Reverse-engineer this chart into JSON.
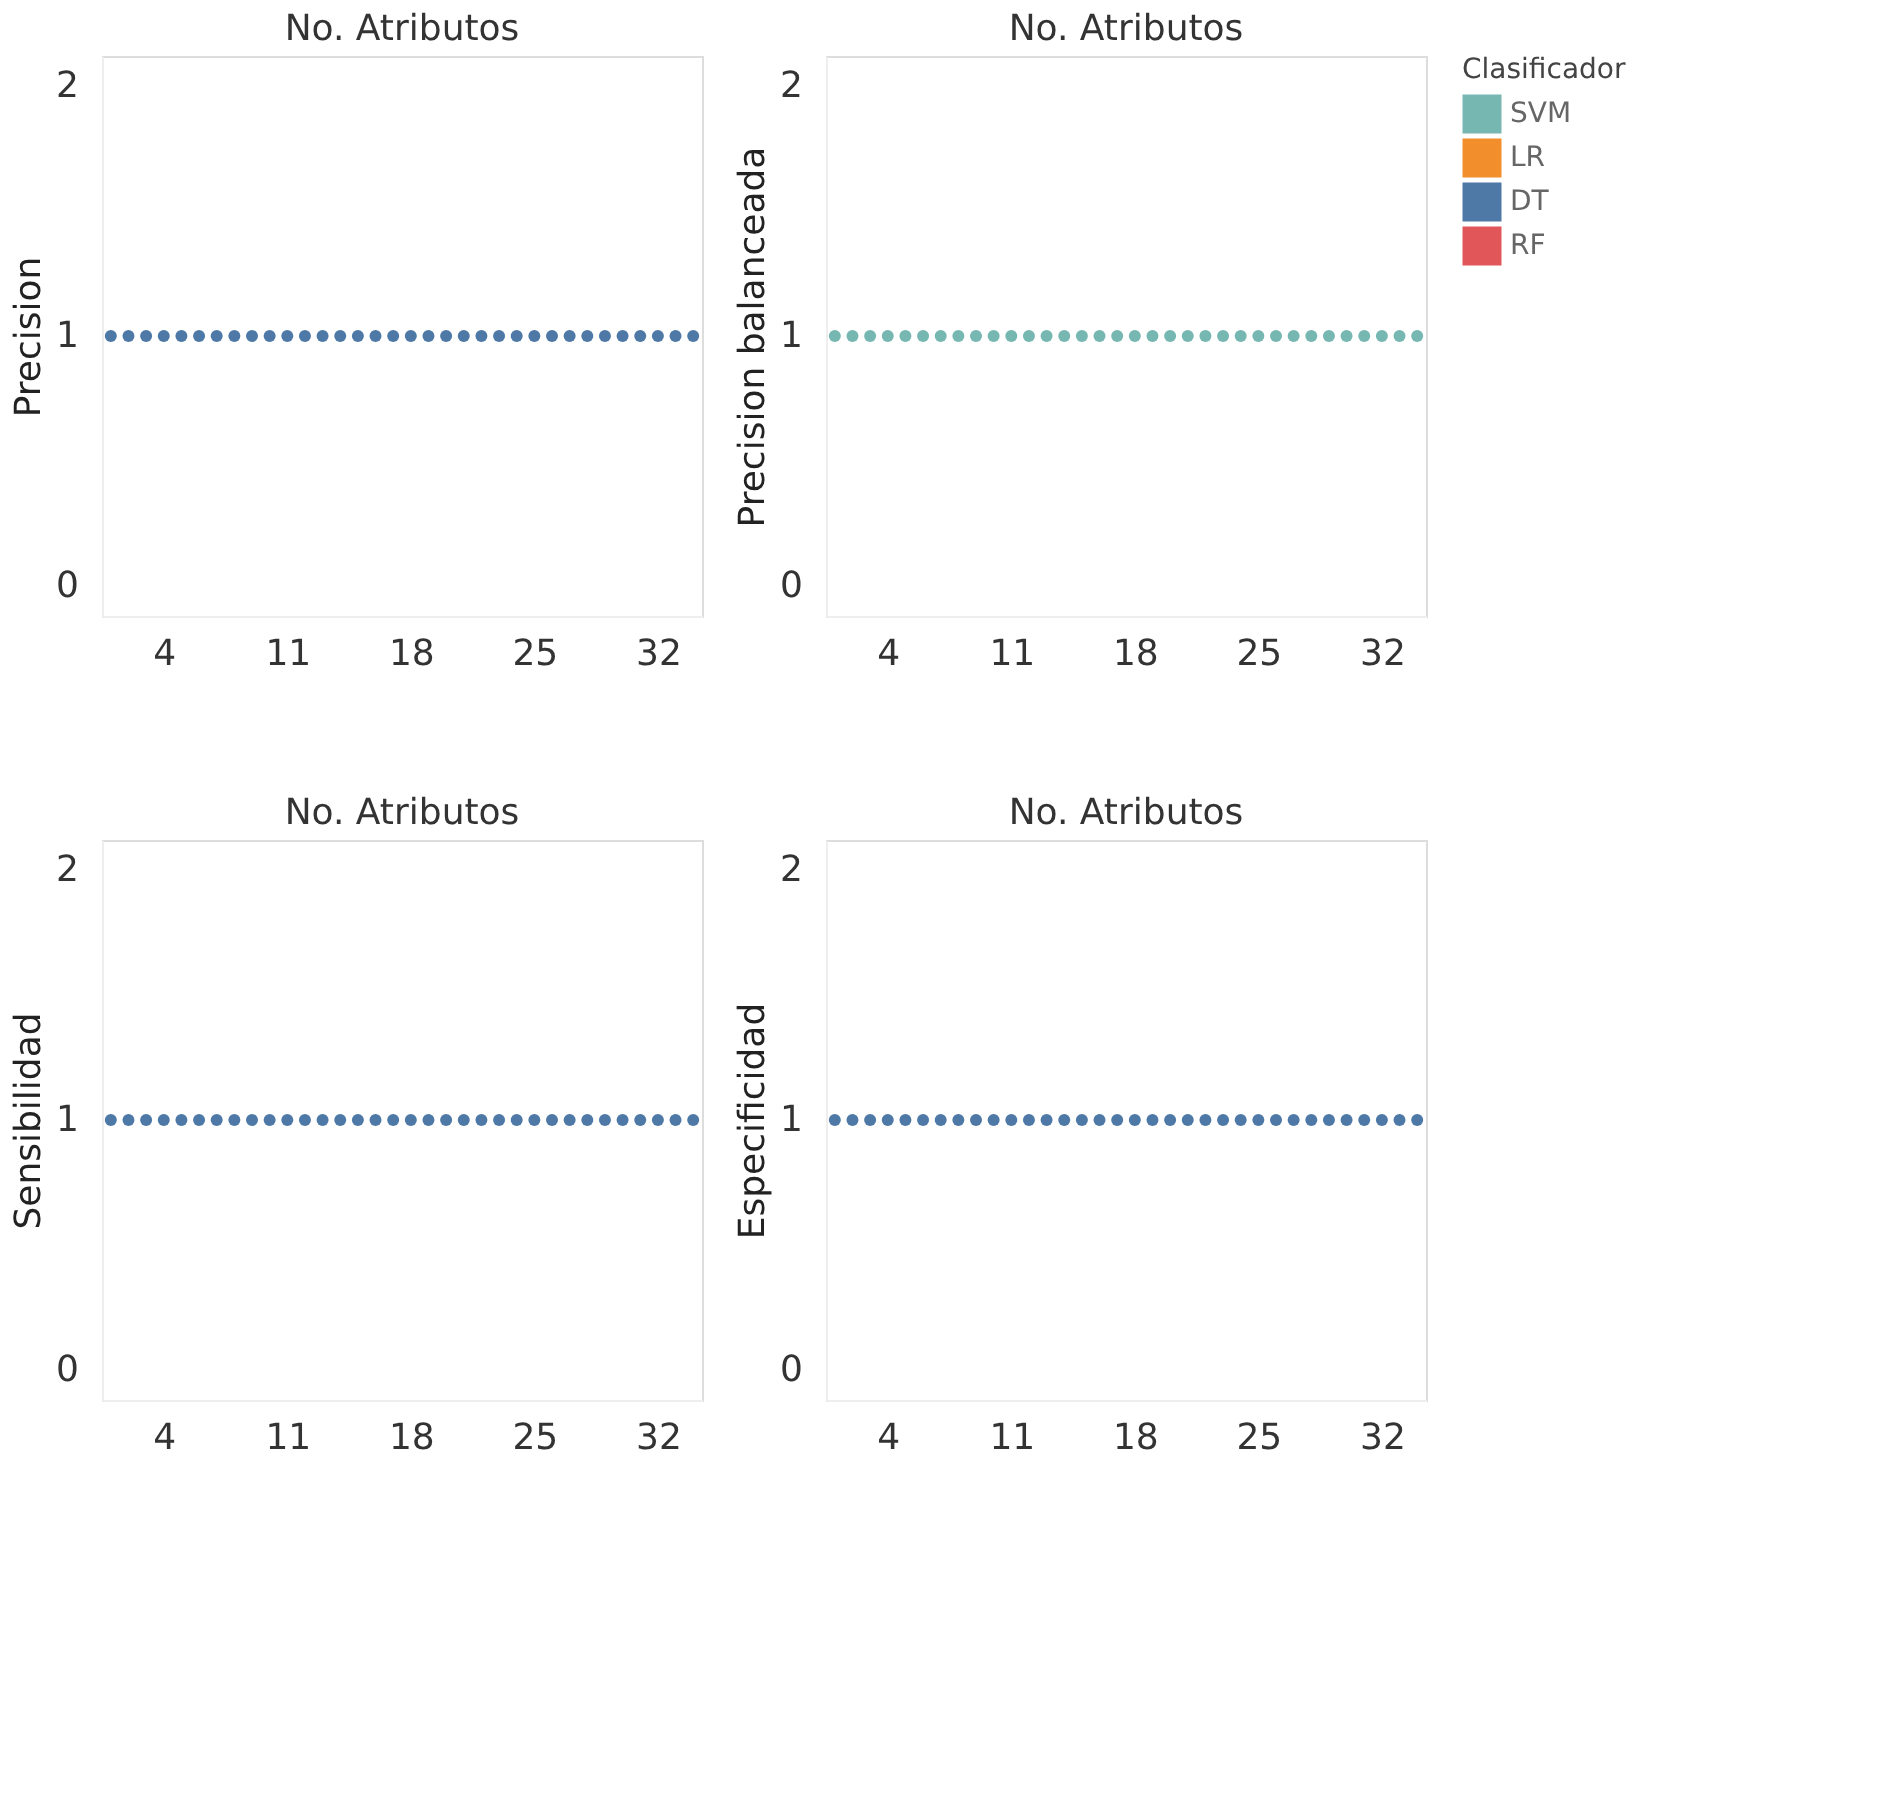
{
  "chart_data": [
    {
      "type": "scatter",
      "title": "No. Atributos",
      "ylabel": "Precision",
      "x": [
        1,
        2,
        3,
        4,
        5,
        6,
        7,
        8,
        9,
        10,
        11,
        12,
        13,
        14,
        15,
        16,
        17,
        18,
        19,
        20,
        21,
        22,
        23,
        24,
        25,
        26,
        27,
        28,
        29,
        30,
        31,
        32,
        33,
        34
      ],
      "xlim": [
        0.5,
        34.5
      ],
      "xticks": [
        4,
        11,
        18,
        25,
        32
      ],
      "ylim": [
        -0.12,
        2.12
      ],
      "yticks": [
        0,
        1,
        2
      ],
      "marker": "circle",
      "series": [
        {
          "color": "#4e79a7",
          "values": [
            1,
            1,
            1,
            1,
            1,
            1,
            1,
            1,
            1,
            1,
            1,
            1,
            1,
            1,
            1,
            1,
            1,
            1,
            1,
            1,
            1,
            1,
            1,
            1,
            1,
            1,
            1,
            1,
            1,
            1,
            1,
            1,
            1,
            1
          ]
        }
      ]
    },
    {
      "type": "scatter",
      "title": "No. Atributos",
      "ylabel": "Precision balanceada",
      "x": [
        1,
        2,
        3,
        4,
        5,
        6,
        7,
        8,
        9,
        10,
        11,
        12,
        13,
        14,
        15,
        16,
        17,
        18,
        19,
        20,
        21,
        22,
        23,
        24,
        25,
        26,
        27,
        28,
        29,
        30,
        31,
        32,
        33,
        34
      ],
      "xlim": [
        0.5,
        34.5
      ],
      "xticks": [
        4,
        11,
        18,
        25,
        32
      ],
      "ylim": [
        -0.12,
        2.12
      ],
      "yticks": [
        0,
        1,
        2
      ],
      "marker": "circle",
      "legend": "right",
      "legend_title": "Clasificador",
      "series": [
        {
          "name": "SVM",
          "color": "#76b7b2",
          "values": [
            1,
            1,
            1,
            1,
            1,
            1,
            1,
            1,
            1,
            1,
            1,
            1,
            1,
            1,
            1,
            1,
            1,
            1,
            1,
            1,
            1,
            1,
            1,
            1,
            1,
            1,
            1,
            1,
            1,
            1,
            1,
            1,
            1,
            1
          ]
        },
        {
          "name": "LR",
          "color": "#f28e2b",
          "values": [
            null,
            null,
            null,
            null,
            null,
            null,
            null,
            null,
            null,
            null,
            null,
            null,
            null,
            null,
            null,
            null,
            null,
            null,
            null,
            null,
            null,
            null,
            null,
            null,
            null,
            null,
            null,
            null,
            null,
            null,
            null,
            null,
            null,
            null
          ]
        },
        {
          "name": "DT",
          "color": "#4e79a7",
          "values": [
            null,
            null,
            null,
            null,
            null,
            null,
            null,
            null,
            null,
            null,
            null,
            null,
            null,
            null,
            null,
            null,
            null,
            null,
            null,
            null,
            null,
            null,
            null,
            null,
            null,
            null,
            null,
            null,
            null,
            null,
            null,
            null,
            null,
            null
          ]
        },
        {
          "name": "RF",
          "color": "#e15759",
          "values": [
            null,
            null,
            null,
            null,
            null,
            null,
            null,
            null,
            null,
            null,
            null,
            null,
            null,
            null,
            null,
            null,
            null,
            null,
            null,
            null,
            null,
            null,
            null,
            null,
            null,
            null,
            null,
            null,
            null,
            null,
            null,
            null,
            null,
            null
          ]
        }
      ]
    },
    {
      "type": "scatter",
      "title": "No. Atributos",
      "ylabel": "Sensibilidad",
      "x": [
        1,
        2,
        3,
        4,
        5,
        6,
        7,
        8,
        9,
        10,
        11,
        12,
        13,
        14,
        15,
        16,
        17,
        18,
        19,
        20,
        21,
        22,
        23,
        24,
        25,
        26,
        27,
        28,
        29,
        30,
        31,
        32,
        33,
        34
      ],
      "xlim": [
        0.5,
        34.5
      ],
      "xticks": [
        4,
        11,
        18,
        25,
        32
      ],
      "ylim": [
        -0.12,
        2.12
      ],
      "yticks": [
        0,
        1,
        2
      ],
      "marker": "circle",
      "series": [
        {
          "color": "#4e79a7",
          "values": [
            1,
            1,
            1,
            1,
            1,
            1,
            1,
            1,
            1,
            1,
            1,
            1,
            1,
            1,
            1,
            1,
            1,
            1,
            1,
            1,
            1,
            1,
            1,
            1,
            1,
            1,
            1,
            1,
            1,
            1,
            1,
            1,
            1,
            1
          ]
        }
      ]
    },
    {
      "type": "scatter",
      "title": "No. Atributos",
      "ylabel": "Especificidad",
      "x": [
        1,
        2,
        3,
        4,
        5,
        6,
        7,
        8,
        9,
        10,
        11,
        12,
        13,
        14,
        15,
        16,
        17,
        18,
        19,
        20,
        21,
        22,
        23,
        24,
        25,
        26,
        27,
        28,
        29,
        30,
        31,
        32,
        33,
        34
      ],
      "xlim": [
        0.5,
        34.5
      ],
      "xticks": [
        4,
        11,
        18,
        25,
        32
      ],
      "ylim": [
        -0.12,
        2.12
      ],
      "yticks": [
        0,
        1,
        2
      ],
      "marker": "circle",
      "series": [
        {
          "color": "#4e79a7",
          "values": [
            1,
            1,
            1,
            1,
            1,
            1,
            1,
            1,
            1,
            1,
            1,
            1,
            1,
            1,
            1,
            1,
            1,
            1,
            1,
            1,
            1,
            1,
            1,
            1,
            1,
            1,
            1,
            1,
            1,
            1,
            1,
            1,
            1,
            1
          ]
        }
      ]
    }
  ]
}
